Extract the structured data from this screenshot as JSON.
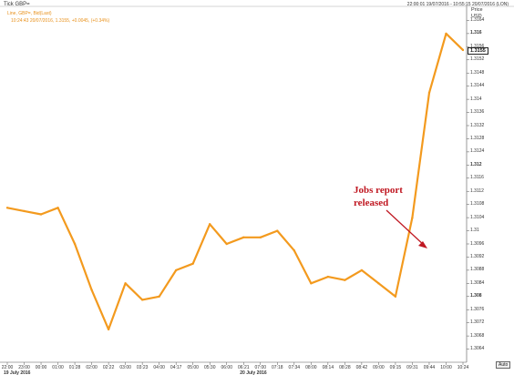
{
  "header": {
    "title": "Tick GBP=",
    "subtitle": "Line, GBP=, Bid(Last)",
    "last_quote": "10:24:43 20/07/2016, 1.3155, +0.0045, (+0.34%)",
    "date_range": "22:00:01 19/07/2016 - 10:55:15 20/07/2016 (LON)"
  },
  "axis_header": {
    "line1": "Price",
    "line2": "USD"
  },
  "current_price": "1.3155",
  "annotation": "Jobs report\nreleased",
  "auto_button": "Auto",
  "colors": {
    "series": "#f39a1e",
    "annotation": "#c01822",
    "grid": "#d0d0d0"
  },
  "chart_data": {
    "type": "line",
    "title": "Tick GBP=",
    "xlabel": "",
    "ylabel": "Price USD",
    "ylim": [
      1.306,
      1.3168
    ],
    "grid": false,
    "y_ticks": [
      "1.3164",
      "1.316",
      "1.3156",
      "1.3152",
      "1.3148",
      "1.3144",
      "1.314",
      "1.3136",
      "1.3132",
      "1.3128",
      "1.3124",
      "1.312",
      "1.3116",
      "1.3112",
      "1.3108",
      "1.3104",
      "1.31",
      "1.3096",
      "1.3092",
      "1.3088",
      "1.3084",
      "1.308",
      "1.3076",
      "1.3072",
      "1.3068",
      "1.3064"
    ],
    "y_ticks_bold": [
      "1.316",
      "1.312",
      "1.308"
    ],
    "x_ticks": [
      "22:00",
      "23:00",
      "00:00",
      "01:00",
      "01:28",
      "02:00",
      "02:22",
      "03:00",
      "03:23",
      "04:00",
      "04:17",
      "05:00",
      "05:30",
      "06:00",
      "06:21",
      "07:00",
      "07:18",
      "07:34",
      "08:00",
      "08:14",
      "08:28",
      "08:42",
      "09:00",
      "09:15",
      "09:31",
      "09:44",
      "10:00",
      "10:24"
    ],
    "date_labels": [
      {
        "text": "19 July 2016",
        "at": "22:00"
      },
      {
        "text": "20 July 2016",
        "at": "06:21"
      }
    ],
    "series": [
      {
        "name": "GBP=",
        "x": [
          "22:00",
          "23:00",
          "00:00",
          "01:00",
          "01:28",
          "02:00",
          "02:22",
          "03:00",
          "03:23",
          "04:00",
          "04:17",
          "05:00",
          "05:30",
          "06:00",
          "06:21",
          "07:00",
          "07:18",
          "07:34",
          "08:00",
          "08:14",
          "08:28",
          "08:42",
          "09:00",
          "09:15",
          "09:31",
          "09:44",
          "10:00",
          "10:24"
        ],
        "values": [
          1.3107,
          1.3106,
          1.3105,
          1.3107,
          1.3096,
          1.3082,
          1.307,
          1.3084,
          1.3079,
          1.308,
          1.3088,
          1.309,
          1.3102,
          1.3096,
          1.3098,
          1.3098,
          1.31,
          1.3094,
          1.3084,
          1.3086,
          1.3085,
          1.3088,
          1.3084,
          1.308,
          1.3104,
          1.3142,
          1.316,
          1.3155
        ]
      }
    ]
  }
}
